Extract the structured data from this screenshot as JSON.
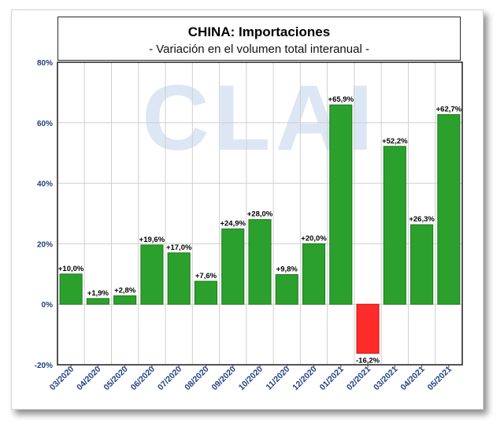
{
  "colors": {
    "positive": "#2ca02c",
    "positive_edge": "#1a7a1a",
    "negative": "#ff2a2a",
    "negative_edge": "#cc1111",
    "axis_label": "#1f3f7f",
    "grid": "#cfcfcf",
    "watermark": "#dde6f4"
  },
  "watermark_text": "CLAI",
  "chart_data": {
    "type": "bar",
    "title": "CHINA: Importaciones",
    "subtitle": "- Variación en el volumen total interanual -",
    "categories": [
      "03/2020",
      "04/2020",
      "05/2020",
      "06/2020",
      "07/2020",
      "08/2020",
      "09/2020",
      "10/2020",
      "11/2020",
      "12/2020",
      "01/2021",
      "02/2021",
      "03/2021",
      "04/2021",
      "05/2021"
    ],
    "values": [
      10.0,
      1.9,
      2.8,
      19.6,
      17.0,
      7.6,
      24.9,
      28.0,
      9.8,
      20.0,
      65.9,
      -16.2,
      52.2,
      26.3,
      62.7
    ],
    "data_labels": [
      "+10,0%",
      "+1,9%",
      "+2,8%",
      "+19,6%",
      "+17,0%",
      "+7,6%",
      "+24,9%",
      "+28,0%",
      "+9,8%",
      "+20,0%",
      "+65,9%",
      "-16,2%",
      "+52,2%",
      "+26,3%",
      "+62,7%"
    ],
    "ylim": [
      -20,
      80
    ],
    "yticks": [
      -20,
      0,
      20,
      40,
      60,
      80
    ],
    "ytick_labels": [
      "-20%",
      "0%",
      "20%",
      "40%",
      "60%",
      "80%"
    ],
    "xlabel": "",
    "ylabel": "",
    "grid": true,
    "legend": false
  }
}
